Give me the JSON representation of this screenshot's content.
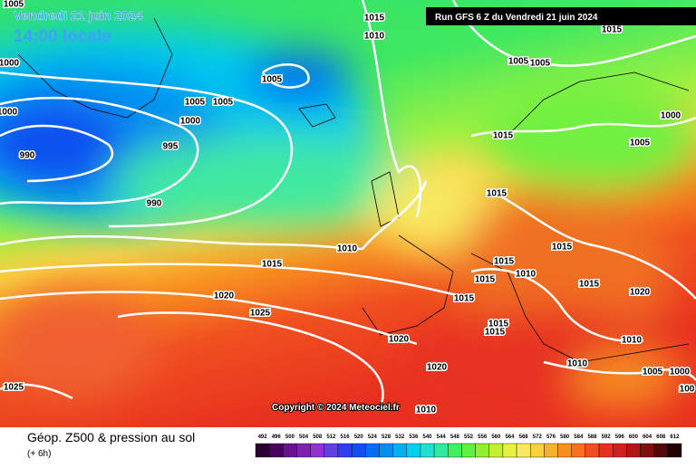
{
  "header": {
    "date": "Vendredi 21 juin 2024",
    "time": "14:00 locale",
    "run": "Run GFS 6 Z du Vendredi 21 juin 2024"
  },
  "copyright": "Copyright © 2024 Meteociel.fr",
  "footer": {
    "title": "Géop. Z500 & pression au sol",
    "subtitle": "(+ 6h)"
  },
  "isobar_labels": [
    1005,
    1015,
    1010,
    1000,
    1005,
    1005,
    1005,
    1000,
    1005,
    1005,
    1000,
    990,
    995,
    990,
    1015,
    1000,
    1005,
    1015,
    1010,
    1015,
    1015,
    1015,
    1010,
    1015,
    1015,
    1020,
    1020,
    1015,
    1025,
    1015,
    1015,
    1020,
    1010,
    1010,
    1020,
    1005,
    1000,
    1025,
    100,
    1010,
    1015
  ],
  "scale": {
    "values": [
      492,
      496,
      500,
      504,
      508,
      512,
      516,
      520,
      524,
      528,
      532,
      536,
      540,
      544,
      548,
      552,
      556,
      560,
      564,
      568,
      572,
      576,
      580,
      584,
      588,
      592,
      596,
      600,
      604,
      608,
      612
    ],
    "colors": [
      "#2a0030",
      "#4b0060",
      "#6a1090",
      "#8020b0",
      "#9030d0",
      "#6040e0",
      "#3040f0",
      "#1050f0",
      "#0070f0",
      "#0090f0",
      "#00b0f0",
      "#00d0f0",
      "#20e0d0",
      "#30e8a0",
      "#40f060",
      "#60f040",
      "#90f030",
      "#c0f030",
      "#e8f040",
      "#f8e860",
      "#f8d040",
      "#f8b030",
      "#f89020",
      "#f87020",
      "#f05020",
      "#e83020",
      "#d02020",
      "#b01818",
      "#801010",
      "#500808",
      "#200000"
    ]
  }
}
